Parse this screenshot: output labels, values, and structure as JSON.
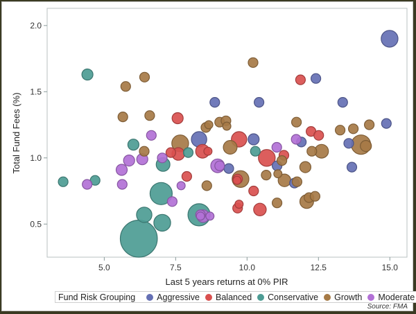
{
  "chart_data": {
    "type": "scatter",
    "subtype": "bubble",
    "title": "",
    "xlabel": "Last 5 years returns at 0% PIR",
    "ylabel": "Total Fund Fees (%)",
    "xlim": [
      3.0,
      15.6
    ],
    "ylim": [
      0.25,
      2.13
    ],
    "xticks": [
      5.0,
      7.5,
      10.0,
      12.5,
      15.0
    ],
    "xtick_labels": [
      "5.0",
      "7.5",
      "10.0",
      "12.5",
      "15.0"
    ],
    "yticks": [
      0.5,
      1.0,
      1.5,
      2.0
    ],
    "ytick_labels": [
      "0.5",
      "1.0",
      "1.5",
      "2.0"
    ],
    "grid": false,
    "legend": {
      "title": "Fund Risk Grouping",
      "placement": "bottom",
      "entries": [
        "Aggressive",
        "Balanced",
        "Conservative",
        "Growth",
        "Moderate"
      ]
    },
    "source": "Source: FMA",
    "series": [
      {
        "name": "Aggressive",
        "color": "#6570b4",
        "points": [
          [
            14.99,
            1.9,
            3.0
          ],
          [
            12.41,
            1.6,
            1.0
          ],
          [
            10.42,
            1.42,
            1.0
          ],
          [
            13.35,
            1.42,
            1.0
          ],
          [
            8.87,
            1.42,
            1.0
          ],
          [
            8.32,
            1.14,
            2.5
          ],
          [
            10.23,
            1.14,
            1.3
          ],
          [
            11.9,
            1.12,
            1.0
          ],
          [
            14.88,
            1.26,
            1.0
          ],
          [
            13.56,
            1.11,
            1.0
          ],
          [
            13.67,
            0.93,
            1.0
          ],
          [
            9.36,
            0.92,
            1.0
          ],
          [
            11.05,
            0.94,
            1.0
          ],
          [
            11.66,
            0.81,
            1.0
          ]
        ]
      },
      {
        "name": "Balanced",
        "color": "#d9504f",
        "points": [
          [
            11.87,
            1.59,
            1.0
          ],
          [
            7.57,
            1.3,
            1.3
          ],
          [
            7.59,
            1.03,
            1.7
          ],
          [
            8.44,
            1.05,
            2.0
          ],
          [
            8.63,
            1.05,
            0.7
          ],
          [
            9.72,
            1.14,
            2.5
          ],
          [
            10.69,
            1.0,
            3.0
          ],
          [
            11.29,
            1.02,
            1.0
          ],
          [
            12.24,
            1.2,
            1.0
          ],
          [
            12.51,
            1.17,
            1.0
          ],
          [
            7.33,
            1.04,
            1.0
          ],
          [
            7.89,
            0.86,
            1.0
          ],
          [
            9.67,
            0.84,
            1.0
          ],
          [
            10.23,
            0.75,
            1.0
          ],
          [
            9.67,
            0.62,
            1.0
          ],
          [
            9.72,
            0.65,
            0.7
          ],
          [
            10.45,
            0.61,
            1.7
          ],
          [
            9.65,
            0.83,
            0.7
          ]
        ]
      },
      {
        "name": "Conservative",
        "color": "#4d9c94",
        "points": [
          [
            4.41,
            1.63,
            1.3
          ],
          [
            3.56,
            0.82,
            1.0
          ],
          [
            4.68,
            0.83,
            1.0
          ],
          [
            6.02,
            1.1,
            1.3
          ],
          [
            7.06,
            0.95,
            2.0
          ],
          [
            6.99,
            0.73,
            5.2
          ],
          [
            6.4,
            0.57,
            2.5
          ],
          [
            7.03,
            0.51,
            3.0
          ],
          [
            6.21,
            0.39,
            14.5
          ],
          [
            8.32,
            0.57,
            5.2
          ],
          [
            7.94,
            1.04,
            1.0
          ],
          [
            10.29,
            1.05,
            1.0
          ]
        ]
      },
      {
        "name": "Growth",
        "color": "#a67a46",
        "points": [
          [
            5.75,
            1.54,
            1.0
          ],
          [
            6.41,
            1.61,
            1.0
          ],
          [
            10.21,
            1.72,
            1.0
          ],
          [
            5.65,
            1.31,
            1.0
          ],
          [
            6.59,
            1.32,
            1.0
          ],
          [
            9.04,
            1.27,
            1.0
          ],
          [
            9.26,
            1.28,
            1.0
          ],
          [
            8.56,
            1.23,
            1.0
          ],
          [
            8.66,
            1.25,
            0.7
          ],
          [
            9.29,
            1.24,
            0.7
          ],
          [
            6.4,
            1.05,
            1.0
          ],
          [
            7.66,
            1.11,
            3.0
          ],
          [
            9.41,
            1.08,
            2.0
          ],
          [
            11.73,
            1.27,
            1.0
          ],
          [
            11.22,
            0.98,
            1.0
          ],
          [
            11.31,
            0.83,
            1.7
          ],
          [
            11.75,
            0.82,
            1.0
          ],
          [
            12.04,
            0.93,
            1.3
          ],
          [
            12.27,
            1.05,
            1.0
          ],
          [
            12.61,
            1.05,
            2.0
          ],
          [
            13.26,
            1.21,
            1.0
          ],
          [
            13.72,
            1.22,
            1.0
          ],
          [
            14.28,
            1.25,
            1.0
          ],
          [
            13.99,
            1.1,
            4.0
          ],
          [
            14.16,
            1.09,
            1.3
          ],
          [
            8.59,
            0.79,
            1.0
          ],
          [
            9.77,
            0.84,
            3.0
          ],
          [
            11.05,
            0.66,
            1.0
          ],
          [
            12.09,
            0.67,
            2.0
          ],
          [
            12.17,
            0.7,
            1.0
          ],
          [
            12.38,
            0.71,
            1.0
          ],
          [
            11.08,
            0.88,
            0.7
          ],
          [
            10.67,
            0.87,
            1.0
          ]
        ]
      },
      {
        "name": "Moderate",
        "color": "#b271d6",
        "points": [
          [
            6.65,
            1.17,
            1.0
          ],
          [
            5.61,
            0.91,
            1.3
          ],
          [
            5.87,
            0.98,
            1.3
          ],
          [
            6.33,
            0.99,
            1.3
          ],
          [
            7.03,
            1.0,
            1.0
          ],
          [
            4.4,
            0.8,
            1.0
          ],
          [
            5.63,
            0.8,
            1.0
          ],
          [
            7.69,
            0.79,
            0.7
          ],
          [
            7.38,
            0.67,
            1.0
          ],
          [
            8.46,
            0.56,
            1.7
          ],
          [
            8.37,
            0.57,
            1.0
          ],
          [
            8.7,
            0.56,
            0.7
          ],
          [
            8.97,
            0.94,
            2.0
          ],
          [
            9.04,
            0.94,
            1.0
          ],
          [
            8.37,
            0.56,
            0.7
          ],
          [
            11.04,
            1.08,
            1.0
          ],
          [
            11.72,
            1.14,
            1.0
          ]
        ]
      }
    ]
  }
}
